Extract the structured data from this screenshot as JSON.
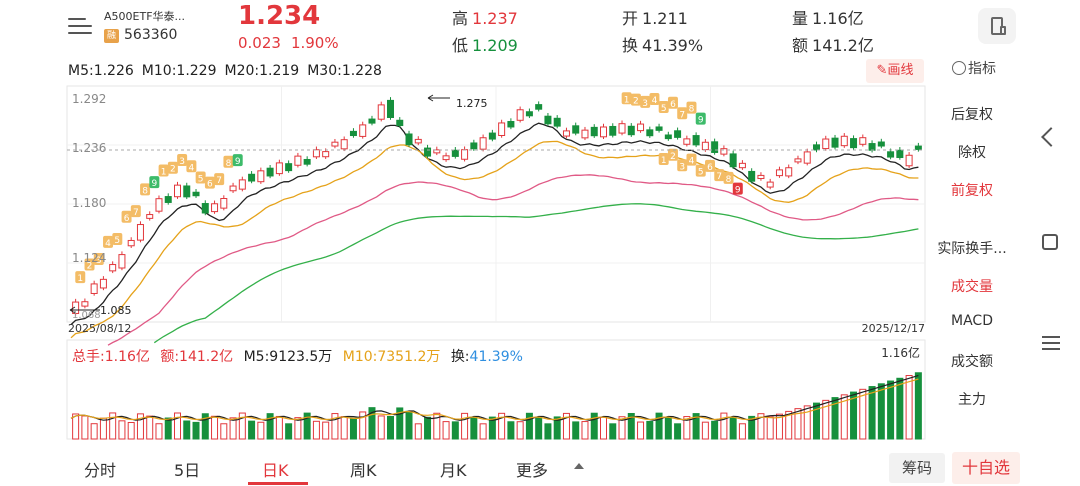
{
  "header": {
    "stock_name": "A500ETF华泰...",
    "badge": "融",
    "stock_code": "563360",
    "price": "1.234",
    "change": "0.023",
    "change_pct": "1.90%",
    "high_label": "高",
    "high": "1.237",
    "low_label": "低",
    "low": "1.209",
    "open_label": "开",
    "open": "1.211",
    "turnover_label": "换",
    "turnover": "41.39%",
    "volume_label": "量",
    "volume": "1.16亿",
    "amount_label": "额",
    "amount": "141.2亿"
  },
  "ma_legend": {
    "m5": "M5:1.226",
    "m10": "M10:1.229",
    "m20": "M20:1.219",
    "m30": "M30:1.228",
    "colors": {
      "m5": "#222222",
      "m10": "#e5a21a",
      "m20": "#e05a86",
      "m30": "#34b04a"
    }
  },
  "draw_button": "画线",
  "indicator_label": "指标",
  "adjust_options": [
    "后复权",
    "除权",
    "前复权"
  ],
  "adjust_active_index": 2,
  "side_indicators": [
    "实际换手...",
    "成交量",
    "MACD",
    "成交额",
    "主力"
  ],
  "side_active_index": 1,
  "volume_legend": {
    "total": "总手:1.16亿",
    "amount": "额:141.2亿",
    "m5": "M5:9123.5万",
    "m10": "M10:7351.2万",
    "turnover_label": "换:",
    "turnover": "41.39%"
  },
  "tabs": [
    "分时",
    "5日",
    "日K",
    "周K",
    "月K",
    "更多"
  ],
  "active_tab_index": 2,
  "chip_button": "筹码",
  "watch_button": "十自选",
  "chart_data": [
    {
      "type": "candlestick",
      "y_tick_labels": [
        "1.292",
        "1.236",
        "1.180",
        "1.124"
      ],
      "ylim": [
        1.068,
        1.292
      ],
      "x_start_label": "2025/08/12",
      "x_end_label": "2025/12/17",
      "annotations": {
        "max": "1.275",
        "min": "1.085",
        "edge_low": "1.068"
      },
      "sequence_labels": [
        "1",
        "2",
        "3",
        "4",
        "5",
        "6",
        "7",
        "8",
        "9"
      ],
      "colors": {
        "up": "#e2373c",
        "down": "#16903d",
        "td_up": "#f3bc66",
        "td_nine": "#3dbb6a",
        "td_nine_low": "#e2373c"
      }
    },
    {
      "type": "bar",
      "top_label": "1.16亿",
      "colors": {
        "up": "#e2373c",
        "down": "#16903d"
      }
    }
  ]
}
